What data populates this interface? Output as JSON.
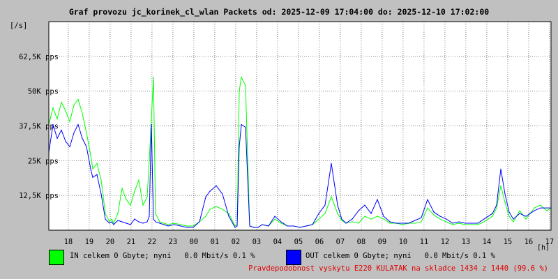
{
  "chart_data": {
    "type": "line",
    "title": "Graf provozu jc_korinek_cl_wlan Packets od: 2025-12-09 17:04:00 do: 2025-12-10 17:02:00",
    "ylabel": "[/s]",
    "xlabel": "[h]",
    "ylim": [
      0,
      75000
    ],
    "y_ticks": [
      {
        "value": 12500,
        "label": "12,5K pps"
      },
      {
        "value": 25000,
        "label": "25K pps"
      },
      {
        "value": 37500,
        "label": "37,5K pps"
      },
      {
        "value": 50000,
        "label": "50K pps"
      },
      {
        "value": 62500,
        "label": "62,5K pps"
      }
    ],
    "x_range": [
      0,
      24
    ],
    "x_ticks": [
      {
        "value": 0.93,
        "label": "18"
      },
      {
        "value": 1.93,
        "label": "19"
      },
      {
        "value": 2.93,
        "label": "20"
      },
      {
        "value": 3.93,
        "label": "21"
      },
      {
        "value": 4.93,
        "label": "22"
      },
      {
        "value": 5.93,
        "label": "23"
      },
      {
        "value": 6.93,
        "label": "00"
      },
      {
        "value": 7.93,
        "label": "01"
      },
      {
        "value": 8.93,
        "label": "02"
      },
      {
        "value": 9.93,
        "label": "03"
      },
      {
        "value": 10.93,
        "label": "04"
      },
      {
        "value": 11.93,
        "label": "05"
      },
      {
        "value": 12.93,
        "label": "06"
      },
      {
        "value": 13.93,
        "label": "07"
      },
      {
        "value": 14.93,
        "label": "08"
      },
      {
        "value": 15.93,
        "label": "09"
      },
      {
        "value": 16.93,
        "label": "10"
      },
      {
        "value": 17.93,
        "label": "11"
      },
      {
        "value": 18.93,
        "label": "12"
      },
      {
        "value": 19.93,
        "label": "13"
      },
      {
        "value": 20.93,
        "label": "14"
      },
      {
        "value": 21.93,
        "label": "15"
      },
      {
        "value": 22.93,
        "label": "16"
      },
      {
        "value": 23.93,
        "label": "17"
      }
    ],
    "grid": true,
    "legend_position": "bottom-left",
    "series": [
      {
        "name": "IN",
        "color": "#00ff00",
        "x": [
          0,
          0.2,
          0.4,
          0.6,
          0.8,
          1.0,
          1.2,
          1.4,
          1.6,
          1.8,
          2.0,
          2.1,
          2.3,
          2.5,
          2.7,
          2.9,
          3.0,
          3.1,
          3.3,
          3.5,
          3.7,
          3.9,
          4.1,
          4.3,
          4.5,
          4.7,
          4.8,
          4.9,
          5.0,
          5.1,
          5.3,
          5.5,
          5.7,
          6.0,
          6.3,
          6.6,
          6.9,
          7.2,
          7.5,
          7.7,
          8.0,
          8.3,
          8.6,
          8.9,
          9.0,
          9.1,
          9.2,
          9.4,
          9.6,
          9.8,
          10.0,
          10.2,
          10.5,
          10.8,
          11.1,
          11.4,
          11.7,
          12.0,
          12.3,
          12.6,
          12.9,
          13.2,
          13.5,
          13.8,
          14.0,
          14.2,
          14.5,
          14.8,
          15.1,
          15.4,
          15.7,
          16.0,
          16.3,
          16.6,
          16.9,
          17.2,
          17.5,
          17.8,
          18.1,
          18.4,
          18.7,
          19.0,
          19.3,
          19.6,
          19.9,
          20.2,
          20.5,
          20.8,
          21.0,
          21.2,
          21.4,
          21.6,
          21.8,
          22.0,
          22.2,
          22.5,
          22.8,
          23.0,
          23.2,
          23.5,
          23.8,
          24.0
        ],
        "values": [
          38000,
          44000,
          40000,
          46000,
          43000,
          39000,
          45000,
          47000,
          42000,
          35000,
          27000,
          22000,
          24000,
          18000,
          6000,
          3000,
          4000,
          2500,
          6000,
          15000,
          11000,
          9000,
          14000,
          18000,
          9000,
          12000,
          25000,
          40000,
          55000,
          6000,
          3000,
          2500,
          2000,
          2500,
          2000,
          1500,
          1500,
          3000,
          5000,
          7500,
          8500,
          7500,
          6000,
          1500,
          2000,
          50000,
          55000,
          52000,
          1500,
          1000,
          1000,
          2000,
          1500,
          4000,
          2500,
          1500,
          1500,
          1000,
          1500,
          2000,
          4000,
          6000,
          12000,
          6000,
          3500,
          2500,
          3000,
          2500,
          5000,
          4000,
          5000,
          4000,
          2500,
          2500,
          2000,
          2500,
          2500,
          3000,
          8000,
          5500,
          4000,
          3000,
          2000,
          2500,
          2000,
          2000,
          2000,
          3000,
          4000,
          5000,
          8000,
          16000,
          10000,
          5000,
          3000,
          7000,
          4000,
          6000,
          8000,
          9000,
          7000,
          8000
        ]
      },
      {
        "name": "OUT",
        "color": "#0000ff",
        "x": [
          0,
          0.2,
          0.4,
          0.6,
          0.8,
          1.0,
          1.2,
          1.4,
          1.6,
          1.8,
          2.0,
          2.1,
          2.3,
          2.5,
          2.7,
          2.9,
          3.0,
          3.1,
          3.3,
          3.5,
          3.7,
          3.9,
          4.1,
          4.3,
          4.5,
          4.7,
          4.8,
          4.9,
          5.0,
          5.1,
          5.3,
          5.5,
          5.7,
          6.0,
          6.3,
          6.6,
          6.9,
          7.2,
          7.5,
          7.7,
          8.0,
          8.3,
          8.6,
          8.9,
          9.0,
          9.1,
          9.2,
          9.4,
          9.6,
          9.8,
          10.0,
          10.2,
          10.5,
          10.8,
          11.1,
          11.4,
          11.7,
          12.0,
          12.3,
          12.6,
          12.9,
          13.2,
          13.5,
          13.8,
          14.0,
          14.2,
          14.5,
          14.8,
          15.1,
          15.4,
          15.7,
          16.0,
          16.3,
          16.6,
          16.9,
          17.2,
          17.5,
          17.8,
          18.1,
          18.4,
          18.7,
          19.0,
          19.3,
          19.6,
          19.9,
          20.2,
          20.5,
          20.8,
          21.0,
          21.2,
          21.4,
          21.6,
          21.8,
          22.0,
          22.2,
          22.5,
          22.8,
          23.0,
          23.2,
          23.5,
          23.8,
          24.0
        ],
        "values": [
          28000,
          38000,
          33000,
          36000,
          32000,
          30000,
          35000,
          38000,
          33000,
          30000,
          22000,
          19000,
          20000,
          13000,
          4000,
          2500,
          3000,
          2000,
          3500,
          3000,
          2500,
          2000,
          4000,
          3000,
          2500,
          3000,
          5000,
          38000,
          4000,
          3000,
          2500,
          2000,
          1500,
          2000,
          1500,
          1000,
          1000,
          3000,
          12000,
          14000,
          16000,
          13000,
          5000,
          1000,
          1500,
          30000,
          38000,
          37000,
          1500,
          1000,
          1000,
          2000,
          1500,
          5000,
          3000,
          1500,
          1500,
          1000,
          1500,
          2000,
          6000,
          9000,
          24000,
          9000,
          4000,
          2500,
          4000,
          7000,
          9000,
          6000,
          11000,
          5000,
          3000,
          2500,
          2500,
          2500,
          3500,
          4500,
          11000,
          6500,
          5000,
          4000,
          2500,
          3000,
          2500,
          2500,
          2500,
          4000,
          5000,
          6000,
          9000,
          22000,
          13000,
          6500,
          4000,
          6000,
          5000,
          6000,
          7000,
          8000,
          8000,
          8000
        ]
      }
    ]
  },
  "legend": {
    "in_text": "IN celkem 0 Gbyte; nyní   0.0 Mbit/s 0.1 %",
    "out_text": "OUT celkem 0 Gbyte; nyní   0.0 Mbit/s 0.1 %",
    "in_color": "#00ff00",
    "out_color": "#0000ff"
  },
  "footer": {
    "text": "Pravdepodobnost vyskytu E220 KULATAK na skladce 1434 z 1440 (99.6 %)",
    "color": "#e00000"
  },
  "colors": {
    "background": "#c0c0c0",
    "plot_background": "#ffffff",
    "grid": "#808080"
  }
}
